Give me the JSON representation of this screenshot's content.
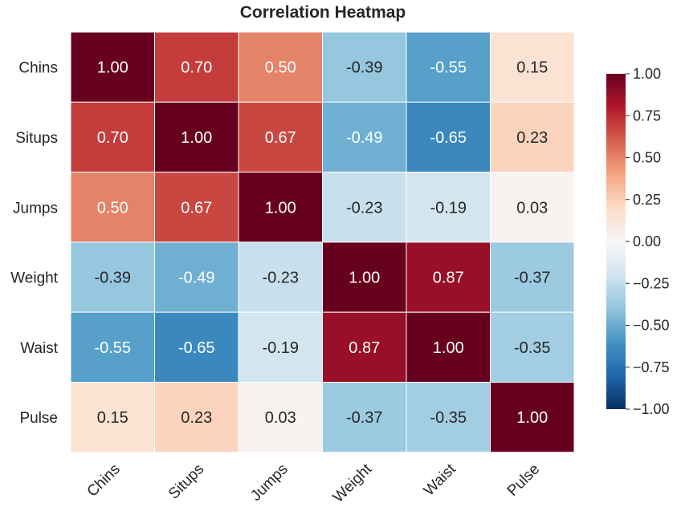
{
  "chart_data": {
    "type": "heatmap",
    "title": "Correlation Heatmap",
    "rows": [
      "Chins",
      "Situps",
      "Jumps",
      "Weight",
      "Waist",
      "Pulse"
    ],
    "columns": [
      "Chins",
      "Situps",
      "Jumps",
      "Weight",
      "Waist",
      "Pulse"
    ],
    "values": [
      [
        1.0,
        0.7,
        0.5,
        -0.39,
        -0.55,
        0.15
      ],
      [
        0.7,
        1.0,
        0.67,
        -0.49,
        -0.65,
        0.23
      ],
      [
        0.5,
        0.67,
        1.0,
        -0.23,
        -0.19,
        0.03
      ],
      [
        -0.39,
        -0.49,
        -0.23,
        1.0,
        0.87,
        -0.37
      ],
      [
        -0.55,
        -0.65,
        -0.19,
        0.87,
        1.0,
        -0.35
      ],
      [
        0.15,
        0.23,
        0.03,
        -0.37,
        -0.35,
        1.0
      ]
    ],
    "value_format": "0.00",
    "colormap": "RdBu_r",
    "vmin": -1.0,
    "vmax": 1.0,
    "colorbar": {
      "placement": "right",
      "ticks": [
        1.0,
        0.75,
        0.5,
        0.25,
        0.0,
        -0.25,
        -0.5,
        -0.75,
        -1.0
      ],
      "tick_labels": [
        "1.00",
        "0.75",
        "0.50",
        "0.25",
        "0.00",
        "−0.25",
        "−0.50",
        "−0.75",
        "−1.00"
      ]
    },
    "colors": {
      "high": "#67001f",
      "mid": "#f7f7f7",
      "low": "#053061",
      "text_dark": "#262626",
      "text_light": "#ffffff",
      "cell_border": "#ffffff"
    }
  }
}
